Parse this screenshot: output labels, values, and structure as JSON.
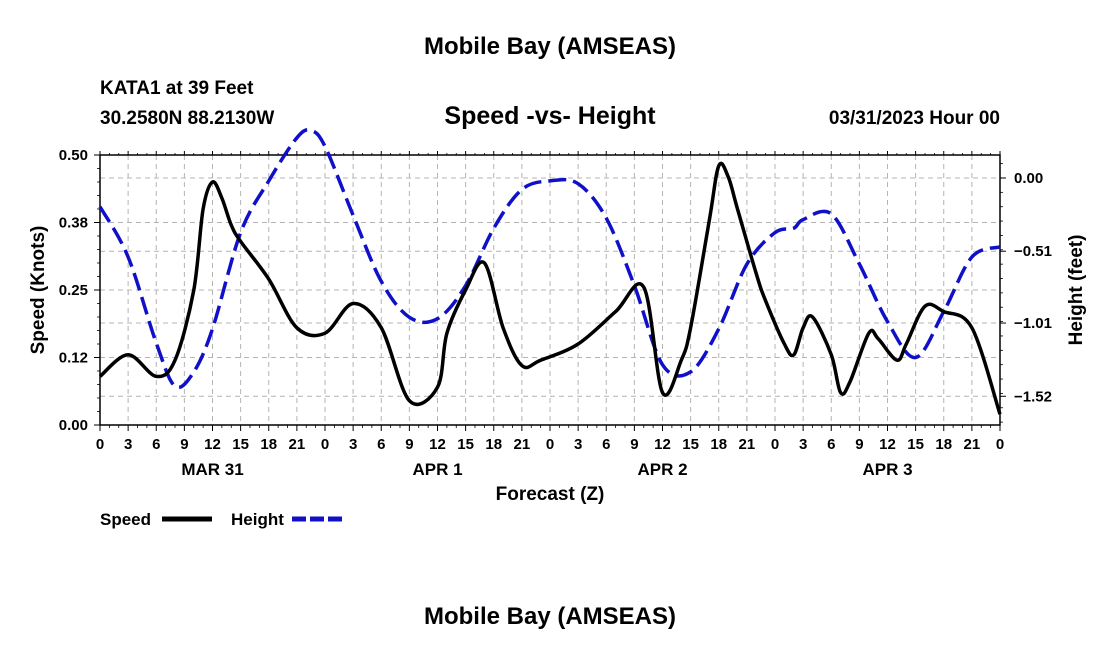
{
  "header": {
    "title": "Mobile Bay (AMSEAS)",
    "station": "KATA1 at 39 Feet",
    "coords": "30.2580N  88.2130W",
    "chart_title": "Speed -vs- Height",
    "date": "03/31/2023 Hour 00"
  },
  "footer": {
    "title": "Mobile Bay (AMSEAS)"
  },
  "legend": {
    "speed_label": "Speed",
    "height_label": "Height"
  },
  "colors": {
    "speed": "#000000",
    "height": "#1010c8",
    "grid": "#b4b4b4"
  },
  "chart_data": {
    "type": "line",
    "xlabel": "Forecast (Z)",
    "ylabel": "Speed (Knots)",
    "y2label": "Height (feet)",
    "xlim": [
      0,
      96
    ],
    "ylim": [
      0,
      0.5
    ],
    "y2lim": [
      -1.72,
      0.16
    ],
    "x_ticks": [
      0,
      3,
      6,
      9,
      12,
      15,
      18,
      21,
      24,
      27,
      30,
      33,
      36,
      39,
      42,
      45,
      48,
      51,
      54,
      57,
      60,
      63,
      66,
      69,
      72,
      75,
      78,
      81,
      84,
      87,
      90,
      93,
      96
    ],
    "x_tick_labels": [
      "0",
      "3",
      "6",
      "9",
      "12",
      "15",
      "18",
      "21",
      "0",
      "3",
      "6",
      "9",
      "12",
      "15",
      "18",
      "21",
      "0",
      "3",
      "6",
      "9",
      "12",
      "15",
      "18",
      "21",
      "0",
      "3",
      "6",
      "9",
      "12",
      "15",
      "18",
      "21",
      "0"
    ],
    "date_labels": [
      {
        "x": 12,
        "label": "MAR 31"
      },
      {
        "x": 36,
        "label": "APR 1"
      },
      {
        "x": 60,
        "label": "APR 2"
      },
      {
        "x": 84,
        "label": "APR 3"
      }
    ],
    "y_ticks": [
      0.0,
      0.125,
      0.25,
      0.375,
      0.5
    ],
    "y_tick_labels": [
      "0.00",
      "0.12",
      "0.25",
      "0.38",
      "0.50"
    ],
    "y2_ticks": [
      0.0,
      -0.51,
      -1.01,
      -1.52
    ],
    "y2_tick_labels": [
      "0.00",
      "−0.51",
      "−1.01",
      "−1.52"
    ],
    "series": [
      {
        "name": "Speed",
        "axis": "left",
        "style": "solid",
        "x": [
          0,
          3,
          6,
          8,
          10,
          11,
          12,
          13,
          14,
          15,
          18,
          21,
          24,
          27,
          30,
          33,
          36,
          37,
          39,
          41,
          43,
          45,
          47,
          51,
          55,
          58,
          60,
          62,
          63,
          65,
          66,
          67,
          68,
          70,
          71,
          73,
          74,
          75,
          76,
          78,
          79,
          80,
          82,
          83,
          85,
          86,
          88,
          90,
          93,
          96
        ],
        "y": [
          0.09,
          0.13,
          0.09,
          0.12,
          0.25,
          0.4,
          0.45,
          0.42,
          0.37,
          0.34,
          0.27,
          0.18,
          0.17,
          0.225,
          0.18,
          0.045,
          0.07,
          0.17,
          0.25,
          0.3,
          0.18,
          0.11,
          0.12,
          0.15,
          0.21,
          0.255,
          0.06,
          0.12,
          0.18,
          0.38,
          0.48,
          0.46,
          0.4,
          0.28,
          0.23,
          0.15,
          0.13,
          0.18,
          0.2,
          0.13,
          0.06,
          0.08,
          0.17,
          0.16,
          0.12,
          0.15,
          0.22,
          0.21,
          0.18,
          0.02
        ]
      },
      {
        "name": "Height",
        "axis": "right",
        "style": "dashed",
        "x": [
          0,
          3,
          6,
          8,
          10,
          12,
          15,
          18,
          21,
          22.5,
          24,
          27,
          30,
          33,
          36,
          39,
          42,
          45,
          48,
          51,
          54,
          57,
          60,
          63,
          66,
          69,
          72,
          74,
          75,
          78,
          81,
          84,
          87,
          90,
          93,
          96
        ],
        "y": [
          -0.2,
          -0.55,
          -1.15,
          -1.45,
          -1.35,
          -1.05,
          -0.38,
          -0.02,
          0.28,
          0.33,
          0.22,
          -0.26,
          -0.72,
          -0.97,
          -0.98,
          -0.75,
          -0.35,
          -0.08,
          -0.02,
          -0.04,
          -0.28,
          -0.75,
          -1.3,
          -1.35,
          -1.05,
          -0.6,
          -0.38,
          -0.35,
          -0.29,
          -0.25,
          -0.6,
          -1.0,
          -1.25,
          -0.93,
          -0.55,
          -0.48
        ]
      }
    ]
  }
}
